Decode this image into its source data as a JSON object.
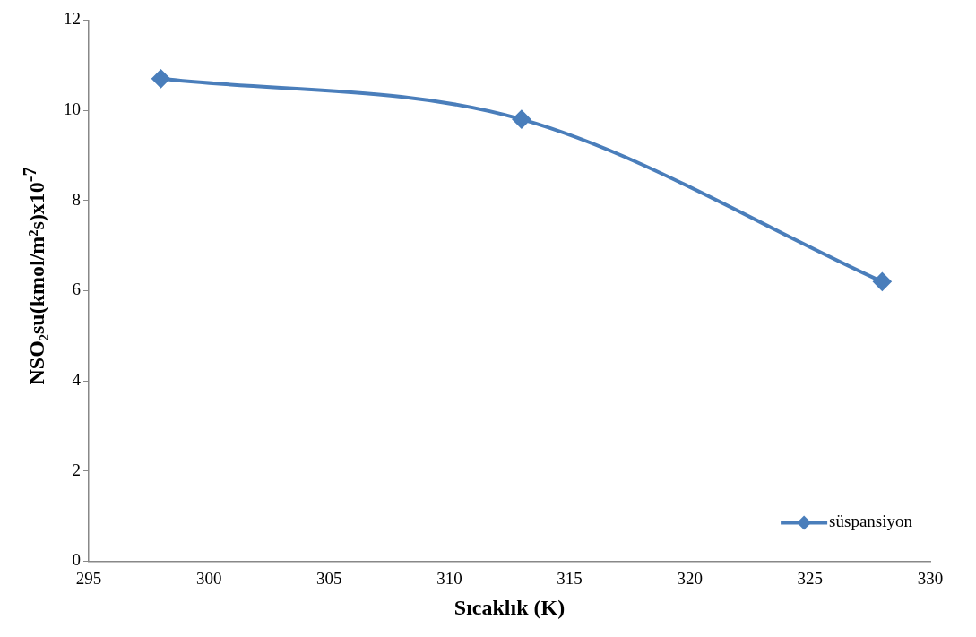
{
  "chart_data": {
    "type": "line",
    "xlabel": "Sıcaklık (K)",
    "ylabel": "NSO₂su(kmol/m²s)x10$^{-7}$",
    "x": [
      298,
      313,
      328
    ],
    "series": [
      {
        "name": "süspansiyon",
        "color": "#4a7ebb",
        "values": [
          10.7,
          9.8,
          6.2
        ]
      }
    ],
    "xlim": [
      295,
      330
    ],
    "xticks": [
      295,
      300,
      305,
      310,
      315,
      320,
      325,
      330
    ],
    "ylim": [
      0,
      12
    ],
    "yticks": [
      0,
      2,
      4,
      6,
      8,
      10,
      12
    ],
    "grid": false,
    "legend": "bottom right",
    "marker": "diamond",
    "line_style": "solid"
  }
}
